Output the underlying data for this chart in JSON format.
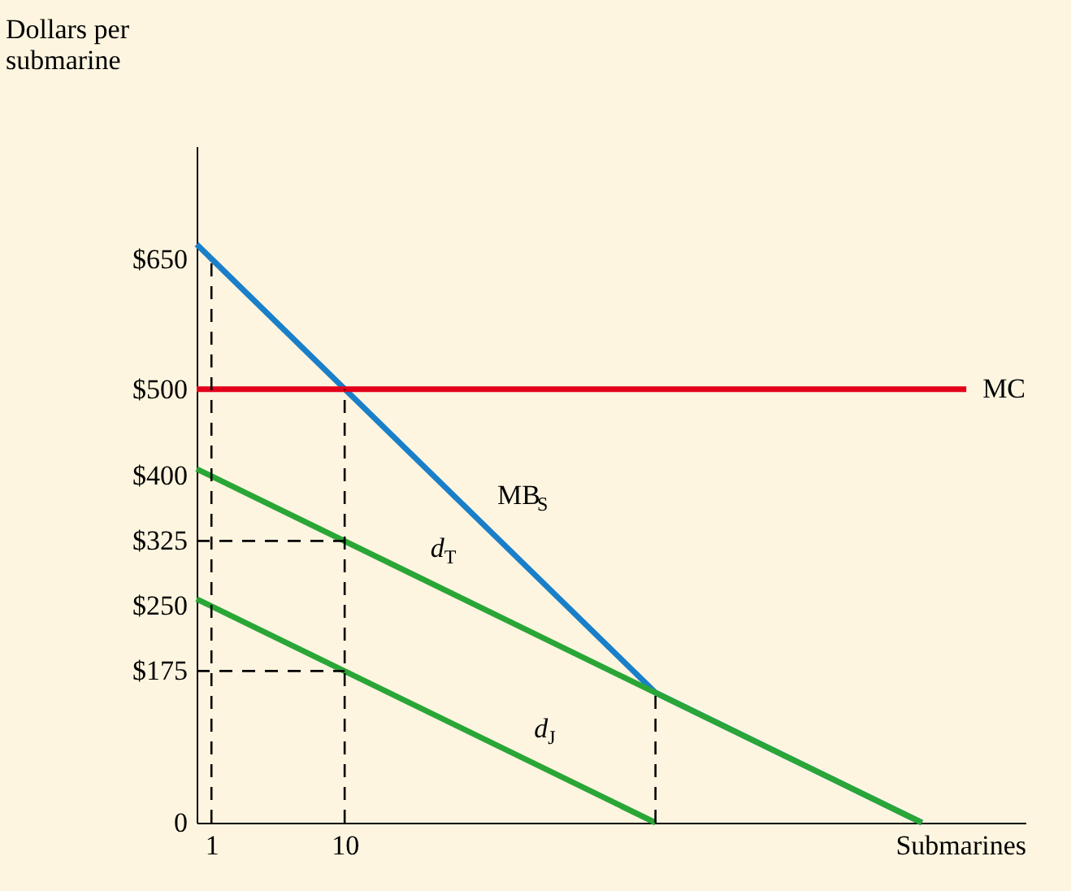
{
  "chart_data": {
    "type": "line",
    "xlabel": "Submarines",
    "ylabel": "Dollars per submarine",
    "xlim": [
      0,
      56
    ],
    "ylim": [
      0,
      780
    ],
    "xticks": [
      1,
      10
    ],
    "yticks": [
      0,
      {
        "value": 175,
        "label": "$175"
      },
      {
        "value": 250,
        "label": "$250"
      },
      {
        "value": 325,
        "label": "$325"
      },
      {
        "value": 400,
        "label": "$400"
      },
      {
        "value": 500,
        "label": "$500"
      },
      {
        "value": 650,
        "label": "$650"
      }
    ],
    "marker": "none",
    "series": [
      {
        "name": "MB$_{S}$",
        "color": "#1a7fc9",
        "x": [
          0,
          31,
          49
        ],
        "values": [
          667,
          150,
          0
        ]
      },
      {
        "name": "MC",
        "color": "#e2001a",
        "x": [
          0,
          52
        ],
        "values": [
          500,
          500
        ]
      },
      {
        "name": "d$_{T}$",
        "color": "#2aa637",
        "x": [
          0,
          49
        ],
        "values": [
          408,
          0
        ]
      },
      {
        "name": "d$_{J}$",
        "color": "#2aa637",
        "x": [
          0,
          31
        ],
        "values": [
          258,
          0
        ]
      },
      {
        "color": "#000000",
        "line_style": "dashed",
        "x": [
          1,
          1
        ],
        "values": [
          0,
          650
        ]
      },
      {
        "color": "#000000",
        "line_style": "dashed",
        "x": [
          10,
          10
        ],
        "values": [
          0,
          500
        ]
      },
      {
        "color": "#000000",
        "line_style": "dashed",
        "x": [
          31,
          31
        ],
        "values": [
          0,
          150
        ]
      },
      {
        "color": "#000000",
        "line_style": "dashed",
        "x": [
          0,
          10
        ],
        "values": [
          325,
          325
        ]
      },
      {
        "color": "#000000",
        "line_style": "dashed",
        "x": [
          0,
          10
        ],
        "values": [
          175,
          175
        ]
      }
    ]
  }
}
